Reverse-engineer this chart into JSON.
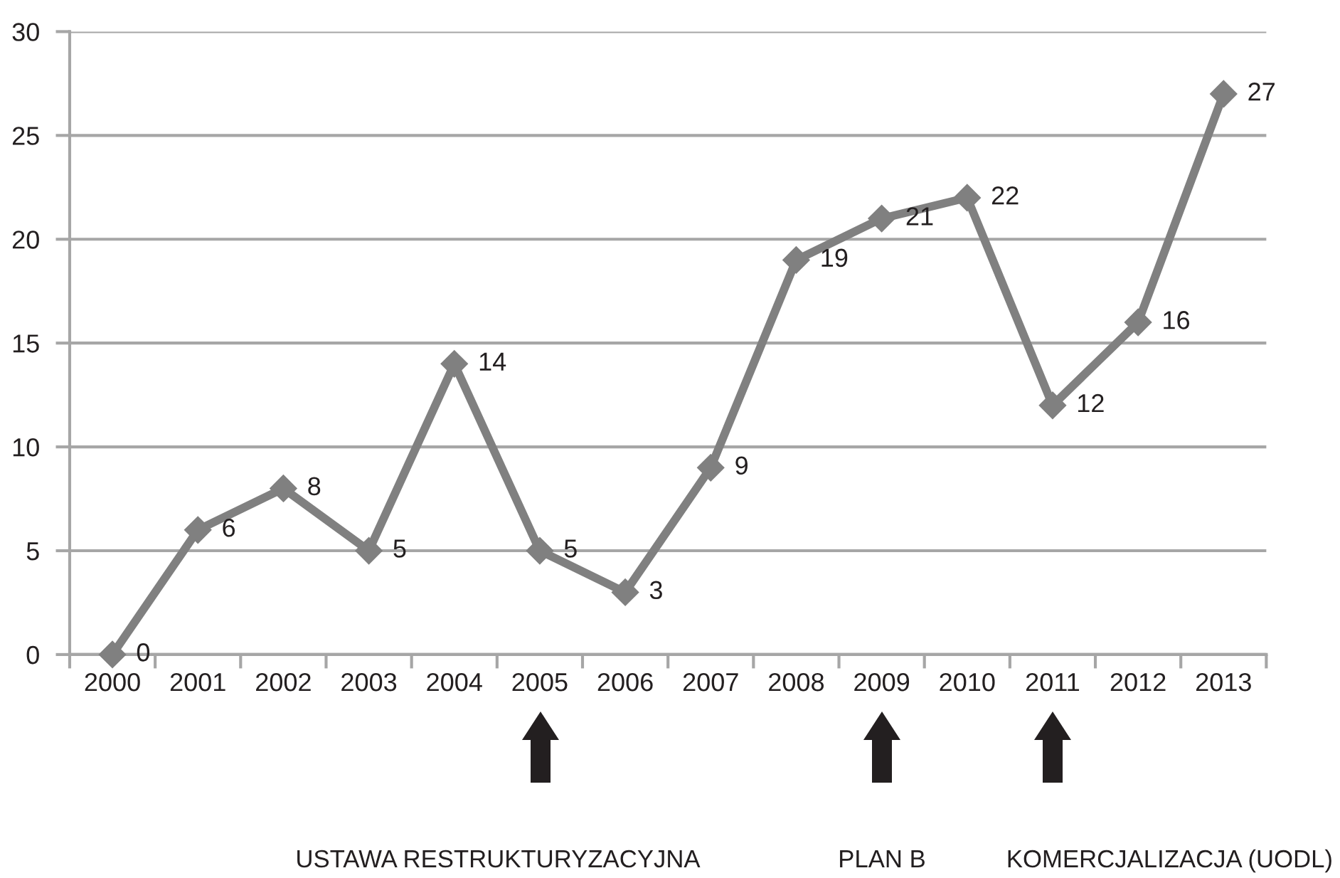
{
  "chart_data": {
    "type": "line",
    "categories": [
      "2000",
      "2001",
      "2002",
      "2003",
      "2004",
      "2005",
      "2006",
      "2007",
      "2008",
      "2009",
      "2010",
      "2011",
      "2012",
      "2013"
    ],
    "series": [
      {
        "color": "#808080",
        "values": [
          0,
          6,
          8,
          5,
          14,
          5,
          3,
          9,
          19,
          21,
          22,
          12,
          16,
          27
        ]
      }
    ],
    "ylim": [
      0,
      30
    ],
    "yticks": [
      0,
      5,
      10,
      15,
      20,
      25,
      30
    ],
    "grid": "y",
    "marker": "diamond",
    "line_style": "solid",
    "data_labels": true,
    "annotations": [
      "USTAWA RESTRUKTURYZACYJNA",
      "PLAN B",
      "KOMERCJALIZACJA (UODL)"
    ]
  }
}
